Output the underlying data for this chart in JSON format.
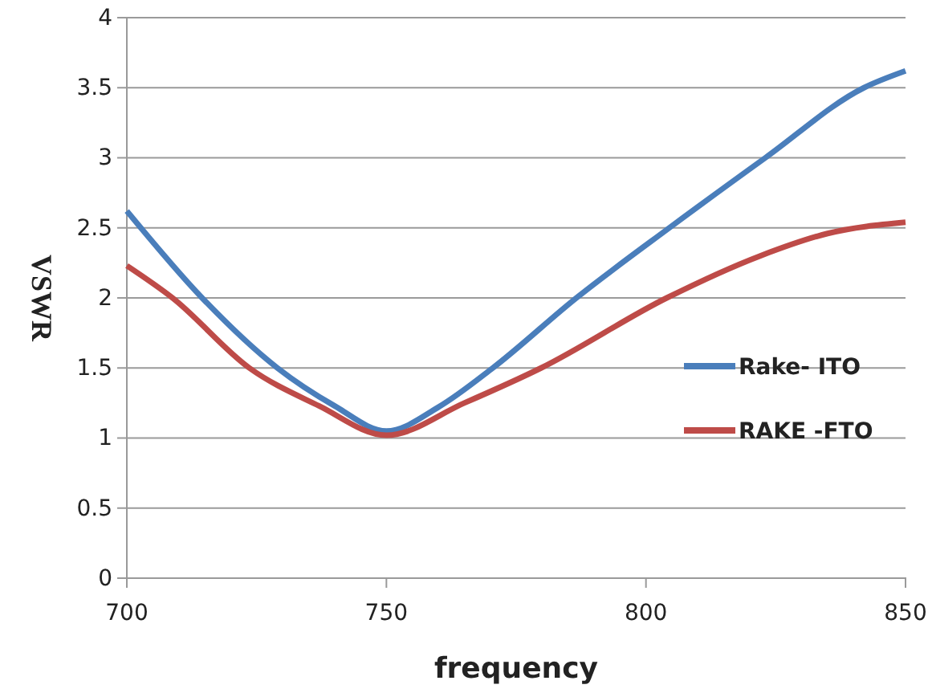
{
  "chart_data": {
    "type": "line",
    "xlabel": "frequency",
    "ylabel": "VSWR",
    "xlim": [
      700,
      850
    ],
    "ylim": [
      0,
      4
    ],
    "xticks": [
      700,
      750,
      800,
      850
    ],
    "yticks": [
      0,
      0.5,
      1,
      1.5,
      2,
      2.5,
      3,
      3.5,
      4
    ],
    "grid": "y",
    "legend": "right",
    "line_style": "solid",
    "marker": "none",
    "series": [
      {
        "name": "Rake- ITO",
        "color": "#4a7ebb",
        "x": [
          700,
          714.5,
          729,
          740,
          750,
          760,
          770.5,
          786.6,
          804.5,
          823,
          842,
          850
        ],
        "values": [
          2.62,
          2.0,
          1.5,
          1.23,
          1.05,
          1.22,
          1.5,
          2.0,
          2.5,
          3.0,
          3.5,
          3.62
        ]
      },
      {
        "name": "RAKE -FTO",
        "color": "#be4b48",
        "x": [
          700,
          708.8,
          723.6,
          737,
          750,
          765,
          779.8,
          804,
          822,
          835,
          850
        ],
        "values": [
          2.23,
          2.0,
          1.5,
          1.23,
          1.02,
          1.25,
          1.5,
          2.0,
          2.3,
          2.46,
          2.54
        ]
      }
    ]
  }
}
